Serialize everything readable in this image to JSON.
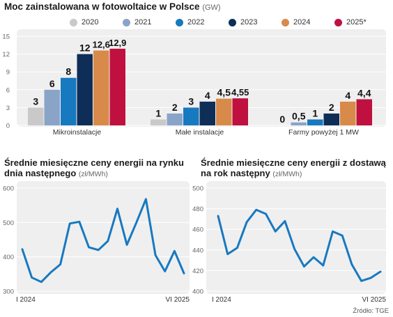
{
  "main_title": "Moc zainstalowana w fotowoltaice w Polsce",
  "main_unit": "(GW)",
  "legend": [
    {
      "label": "2020",
      "color": "#c9c9c9"
    },
    {
      "label": "2021",
      "color": "#8aa4c8"
    },
    {
      "label": "2022",
      "color": "#1779c0"
    },
    {
      "label": "2023",
      "color": "#0e2e57"
    },
    {
      "label": "2024",
      "color": "#d88a4a"
    },
    {
      "label": "2025*",
      "color": "#c0103f"
    }
  ],
  "chart_data": [
    {
      "type": "bar",
      "title": "Moc zainstalowana w fotowoltaice w Polsce (GW)",
      "categories": [
        "Mikroinstalacje",
        "Małe instalacje",
        "Farmy powyżej 1 MW"
      ],
      "series": [
        {
          "name": "2020",
          "values": [
            3,
            1,
            0
          ],
          "labels": [
            "3",
            "1",
            "0"
          ]
        },
        {
          "name": "2021",
          "values": [
            6,
            2,
            0.5
          ],
          "labels": [
            "6",
            "2",
            "0,5"
          ]
        },
        {
          "name": "2022",
          "values": [
            8,
            3,
            1
          ],
          "labels": [
            "8",
            "3",
            "1"
          ]
        },
        {
          "name": "2023",
          "values": [
            12,
            4,
            2
          ],
          "labels": [
            "12",
            "4",
            "2"
          ]
        },
        {
          "name": "2024",
          "values": [
            12.6,
            4.5,
            4
          ],
          "labels": [
            "12,6",
            "4,5",
            "4"
          ]
        },
        {
          "name": "2025*",
          "values": [
            12.9,
            4.55,
            4.4
          ],
          "labels": [
            "12,9",
            "4,55",
            "4,4"
          ]
        }
      ],
      "yticks": [
        "0",
        "3",
        "6",
        "9",
        "12",
        "15"
      ],
      "ylim": [
        0,
        15
      ],
      "grid": true
    },
    {
      "type": "line",
      "title": "Średnie miesięczne ceny energii na rynku dnia następnego",
      "unit": "(zł/MWh)",
      "x_start_label": "I 2024",
      "x_end_label": "VI 2025",
      "y": [
        422,
        340,
        327,
        355,
        378,
        497,
        502,
        428,
        420,
        446,
        540,
        435,
        500,
        568,
        405,
        358,
        417,
        352
      ],
      "yticks": [
        "300",
        "400",
        "500",
        "600"
      ],
      "ylim": [
        300,
        600
      ],
      "color": "#1779c0"
    },
    {
      "type": "line",
      "title": "Średnie miesięczne ceny energii z dostawą na rok następny",
      "unit": "(zł/MWh)",
      "x_start_label": "I 2024",
      "x_end_label": "VI 2025",
      "y": [
        473,
        436,
        442,
        467,
        479,
        475,
        458,
        468,
        441,
        424,
        433,
        425,
        458,
        454,
        426,
        410,
        413,
        419
      ],
      "yticks": [
        "400",
        "420",
        "440",
        "460",
        "480",
        "500"
      ],
      "ylim": [
        400,
        500
      ],
      "color": "#1779c0"
    }
  ],
  "source": "Źródło: TGE"
}
